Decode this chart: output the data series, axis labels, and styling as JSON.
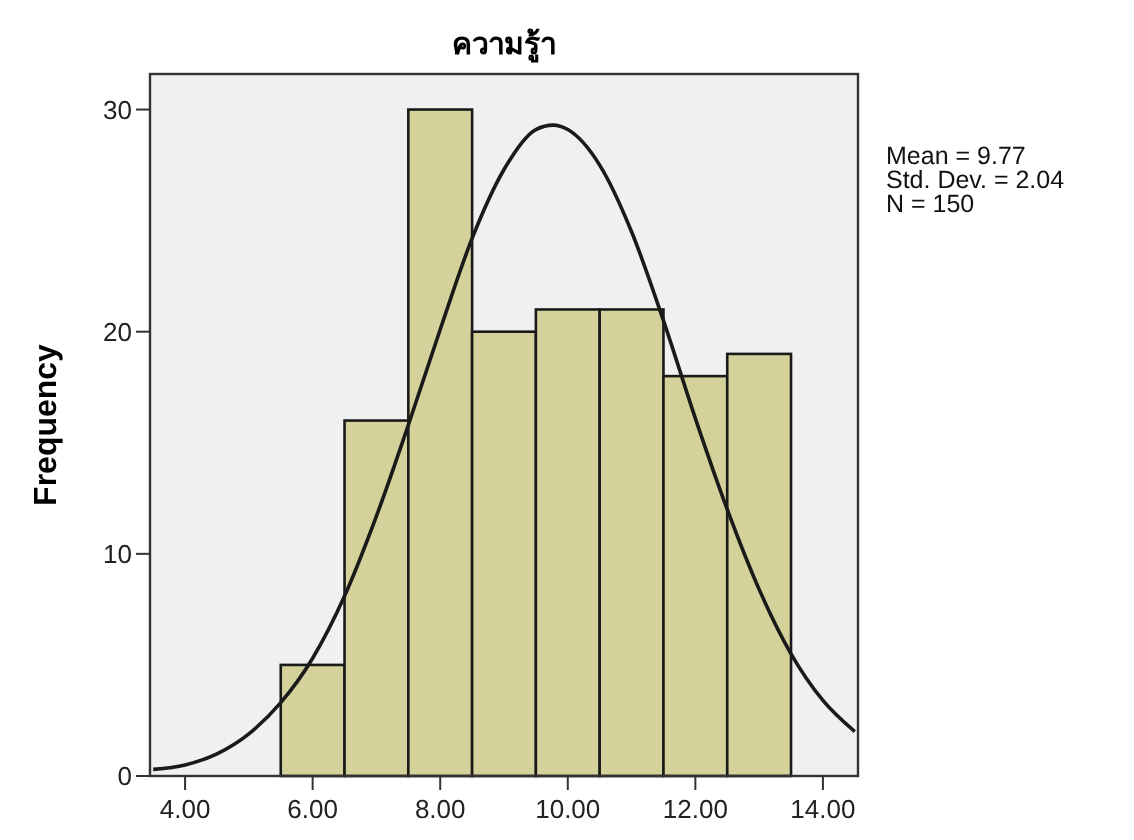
{
  "chart_data": {
    "type": "histogram",
    "title": "ความรู้า",
    "ylabel": "Frequency",
    "bins": [
      5.5,
      6.5,
      7.5,
      8.5,
      9.5,
      10.5,
      11.5,
      12.5,
      13.5
    ],
    "values": [
      5,
      16,
      30,
      20,
      21,
      21,
      18,
      19
    ],
    "color": "#d4d19a",
    "series": [
      {
        "type": "line",
        "color": "#1a1a1a",
        "marker": "none",
        "x": [
          3.5,
          4,
          4.5,
          5,
          5.5,
          6,
          6.5,
          7,
          7.5,
          8,
          8.5,
          9,
          9.5,
          9.77,
          10,
          10.5,
          11,
          11.5,
          12,
          12.5,
          13,
          13.5,
          14,
          14.5
        ],
        "values": [
          0.3,
          0.5,
          1.0,
          1.9,
          3.3,
          5.3,
          8.1,
          11.7,
          15.8,
          20.1,
          24.2,
          27.3,
          29.1,
          29.3,
          29.1,
          27.5,
          24.5,
          20.5,
          16.1,
          12.0,
          8.4,
          5.5,
          3.4,
          2.0
        ]
      }
    ],
    "xlim": [
      3.45,
      14.55
    ],
    "xticks": [
      {
        "value": 4,
        "label": "4.00"
      },
      {
        "value": 6,
        "label": "6.00"
      },
      {
        "value": 8,
        "label": "8.00"
      },
      {
        "value": 10,
        "label": "10.00"
      },
      {
        "value": 12,
        "label": "12.00"
      },
      {
        "value": 14,
        "label": "14.00"
      }
    ],
    "ylim": [
      0,
      31.6
    ],
    "yticks": [
      0,
      10,
      20,
      30
    ],
    "grid": false,
    "annotations": [
      "Mean = 9.77",
      "Std. Dev. = 2.04",
      "N = 150"
    ]
  }
}
